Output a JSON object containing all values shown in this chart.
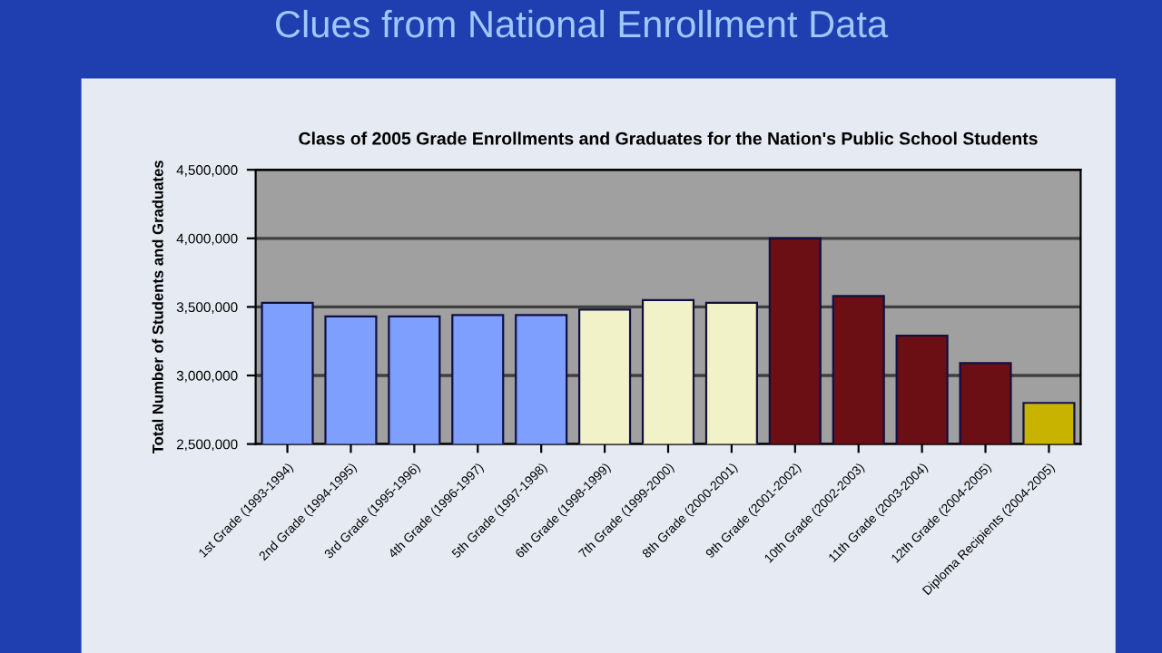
{
  "chart_data": {
    "type": "bar",
    "title": "Class of 2005 Grade Enrollments and Graduates for the Nation's Public School Students",
    "annotations": [
      "Clues from National Enrollment Data"
    ],
    "ylabel": "Total Number of Students and Graduates",
    "categories": [
      "1st Grade (1993-1994)",
      "2nd Grade (1994-1995)",
      "3rd Grade (1995-1996)",
      "4th Grade (1996-1997)",
      "5th Grade (1997-1998)",
      "6th Grade (1998-1999)",
      "7th Grade (1999-2000)",
      "8th Grade (2000-2001)",
      "9th Grade (2001-2002)",
      "10th Grade (2002-2003)",
      "11th Grade (2003-2004)",
      "12th Grade (2004-2005)",
      "Diploma Recipients (2004-2005)"
    ],
    "values": [
      3530000,
      3430000,
      3430000,
      3440000,
      3440000,
      3480000,
      3550000,
      3530000,
      4000000,
      3580000,
      3290000,
      3090000,
      2800000
    ],
    "colors": [
      "#7f9fff",
      "#7f9fff",
      "#7f9fff",
      "#7f9fff",
      "#7f9fff",
      "#f2f2c8",
      "#f2f2c8",
      "#f2f2c8",
      "#6b0f14",
      "#6b0f14",
      "#6b0f14",
      "#6b0f14",
      "#c8b400"
    ],
    "ylim": [
      2500000,
      4500000
    ],
    "yticks": [
      {
        "value": 2500000,
        "label": "2,500,000"
      },
      {
        "value": 3000000,
        "label": "3,000,000"
      },
      {
        "value": 3500000,
        "label": "3,500,000"
      },
      {
        "value": 4000000,
        "label": "4,000,000"
      },
      {
        "value": 4500000,
        "label": "4,500,000"
      }
    ],
    "grid": "y"
  }
}
